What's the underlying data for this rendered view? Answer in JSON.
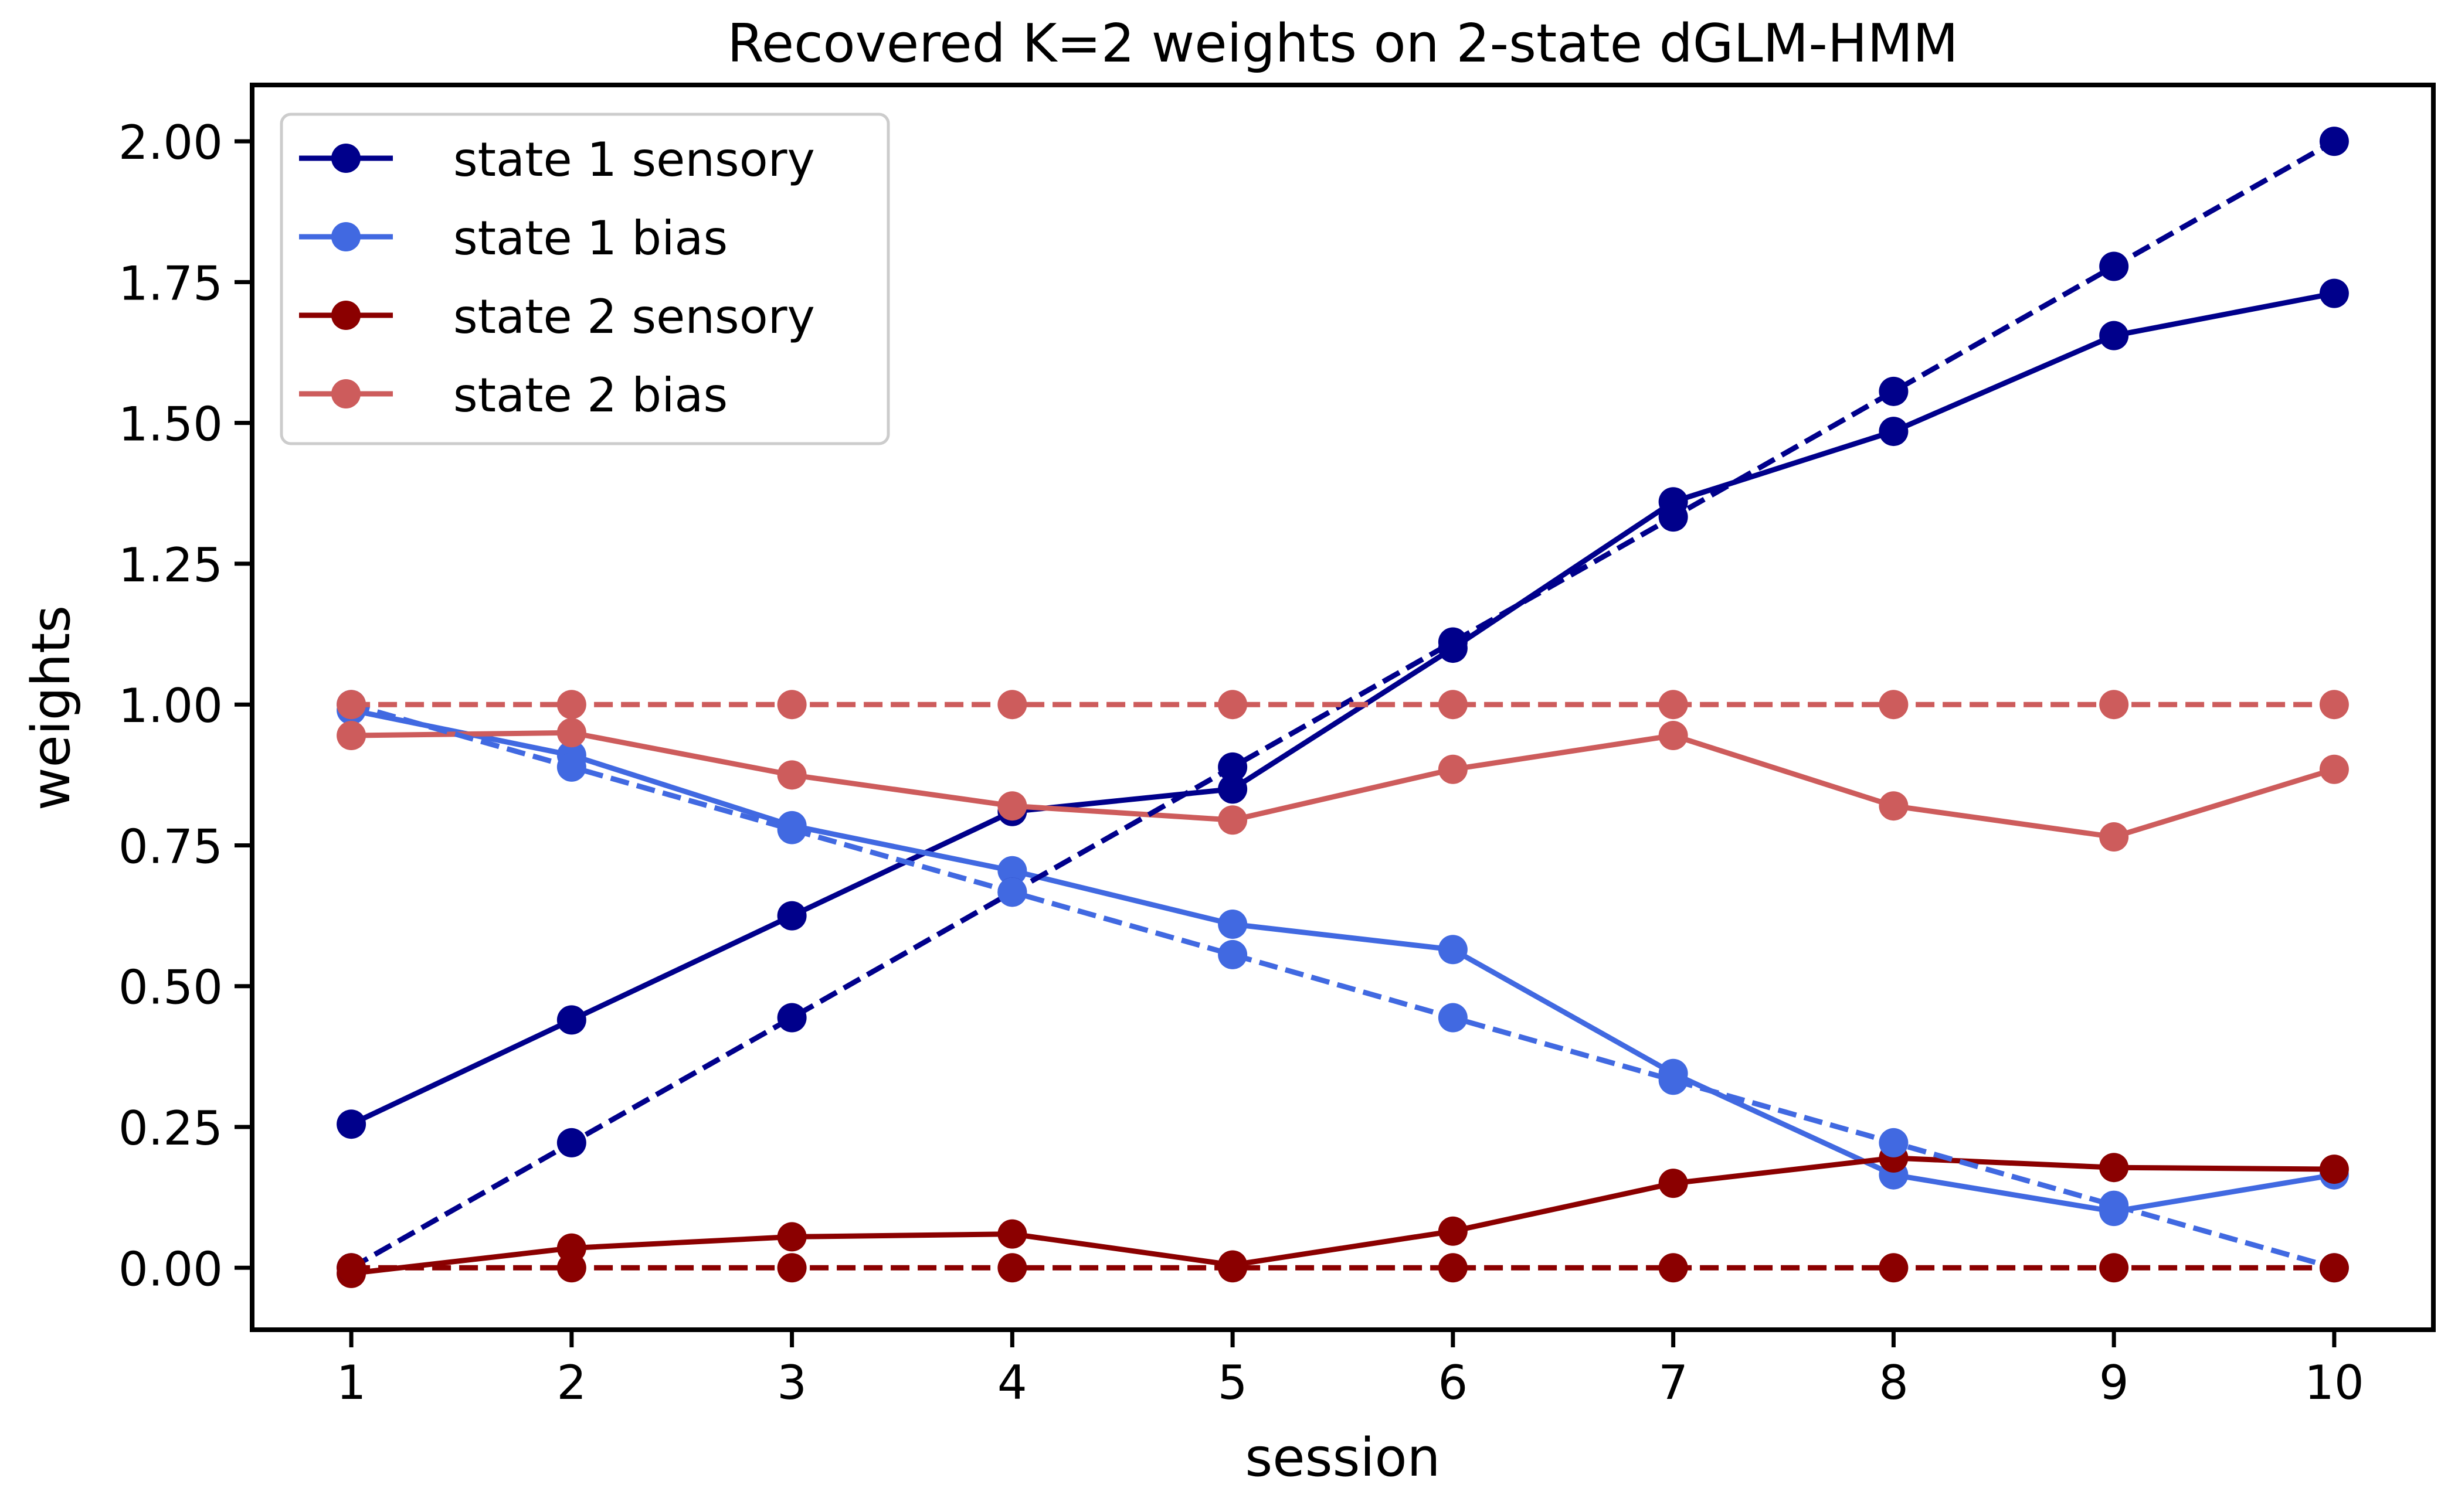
{
  "chart_data": {
    "type": "line",
    "title": "Recovered K=2 weights on 2-state dGLM-HMM",
    "xlabel": "session",
    "ylabel": "weights",
    "x": [
      1,
      2,
      3,
      4,
      5,
      6,
      7,
      8,
      9,
      10
    ],
    "xlim": [
      0.55,
      10.45
    ],
    "ylim": [
      -0.11,
      2.1
    ],
    "yticks": [
      0.0,
      0.25,
      0.5,
      0.75,
      1.0,
      1.25,
      1.5,
      1.75,
      2.0
    ],
    "ytick_labels": [
      "0.00",
      "0.25",
      "0.50",
      "0.75",
      "1.00",
      "1.25",
      "1.50",
      "1.75",
      "2.00"
    ],
    "xtick_labels": [
      "1",
      "2",
      "3",
      "4",
      "5",
      "6",
      "7",
      "8",
      "9",
      "10"
    ],
    "legend_position": "upper-left",
    "series": [
      {
        "name": "state 1 sensory",
        "color": "#00008b",
        "style": "solid",
        "values": [
          0.255,
          0.44,
          0.625,
          0.81,
          0.85,
          1.1,
          1.36,
          1.485,
          1.655,
          1.73
        ]
      },
      {
        "name": "state 1 bias",
        "color": "#4169e1",
        "style": "solid",
        "values": [
          0.99,
          0.91,
          0.785,
          0.705,
          0.61,
          0.565,
          0.345,
          0.165,
          0.1,
          0.165
        ]
      },
      {
        "name": "state 2 sensory",
        "color": "#8b0000",
        "style": "solid",
        "values": [
          -0.01,
          0.035,
          0.055,
          0.06,
          0.005,
          0.065,
          0.15,
          0.195,
          0.178,
          0.175
        ]
      },
      {
        "name": "state 2 bias",
        "color": "#cd5c5c",
        "style": "solid",
        "values": [
          0.945,
          0.95,
          0.875,
          0.82,
          0.795,
          0.885,
          0.945,
          0.82,
          0.765,
          0.885
        ]
      },
      {
        "color": "#00008b",
        "style": "dashed",
        "values": [
          0.0,
          0.222,
          0.444,
          0.667,
          0.889,
          1.111,
          1.333,
          1.556,
          1.778,
          2.0
        ]
      },
      {
        "color": "#4169e1",
        "style": "dashed",
        "values": [
          1.0,
          0.889,
          0.778,
          0.667,
          0.556,
          0.444,
          0.333,
          0.222,
          0.111,
          0.0
        ]
      },
      {
        "color": "#8b0000",
        "style": "dashed",
        "values": [
          0,
          0,
          0,
          0,
          0,
          0,
          0,
          0,
          0,
          0
        ]
      },
      {
        "color": "#cd5c5c",
        "style": "dashed",
        "values": [
          1,
          1,
          1,
          1,
          1,
          1,
          1,
          1,
          1,
          1
        ]
      }
    ]
  }
}
